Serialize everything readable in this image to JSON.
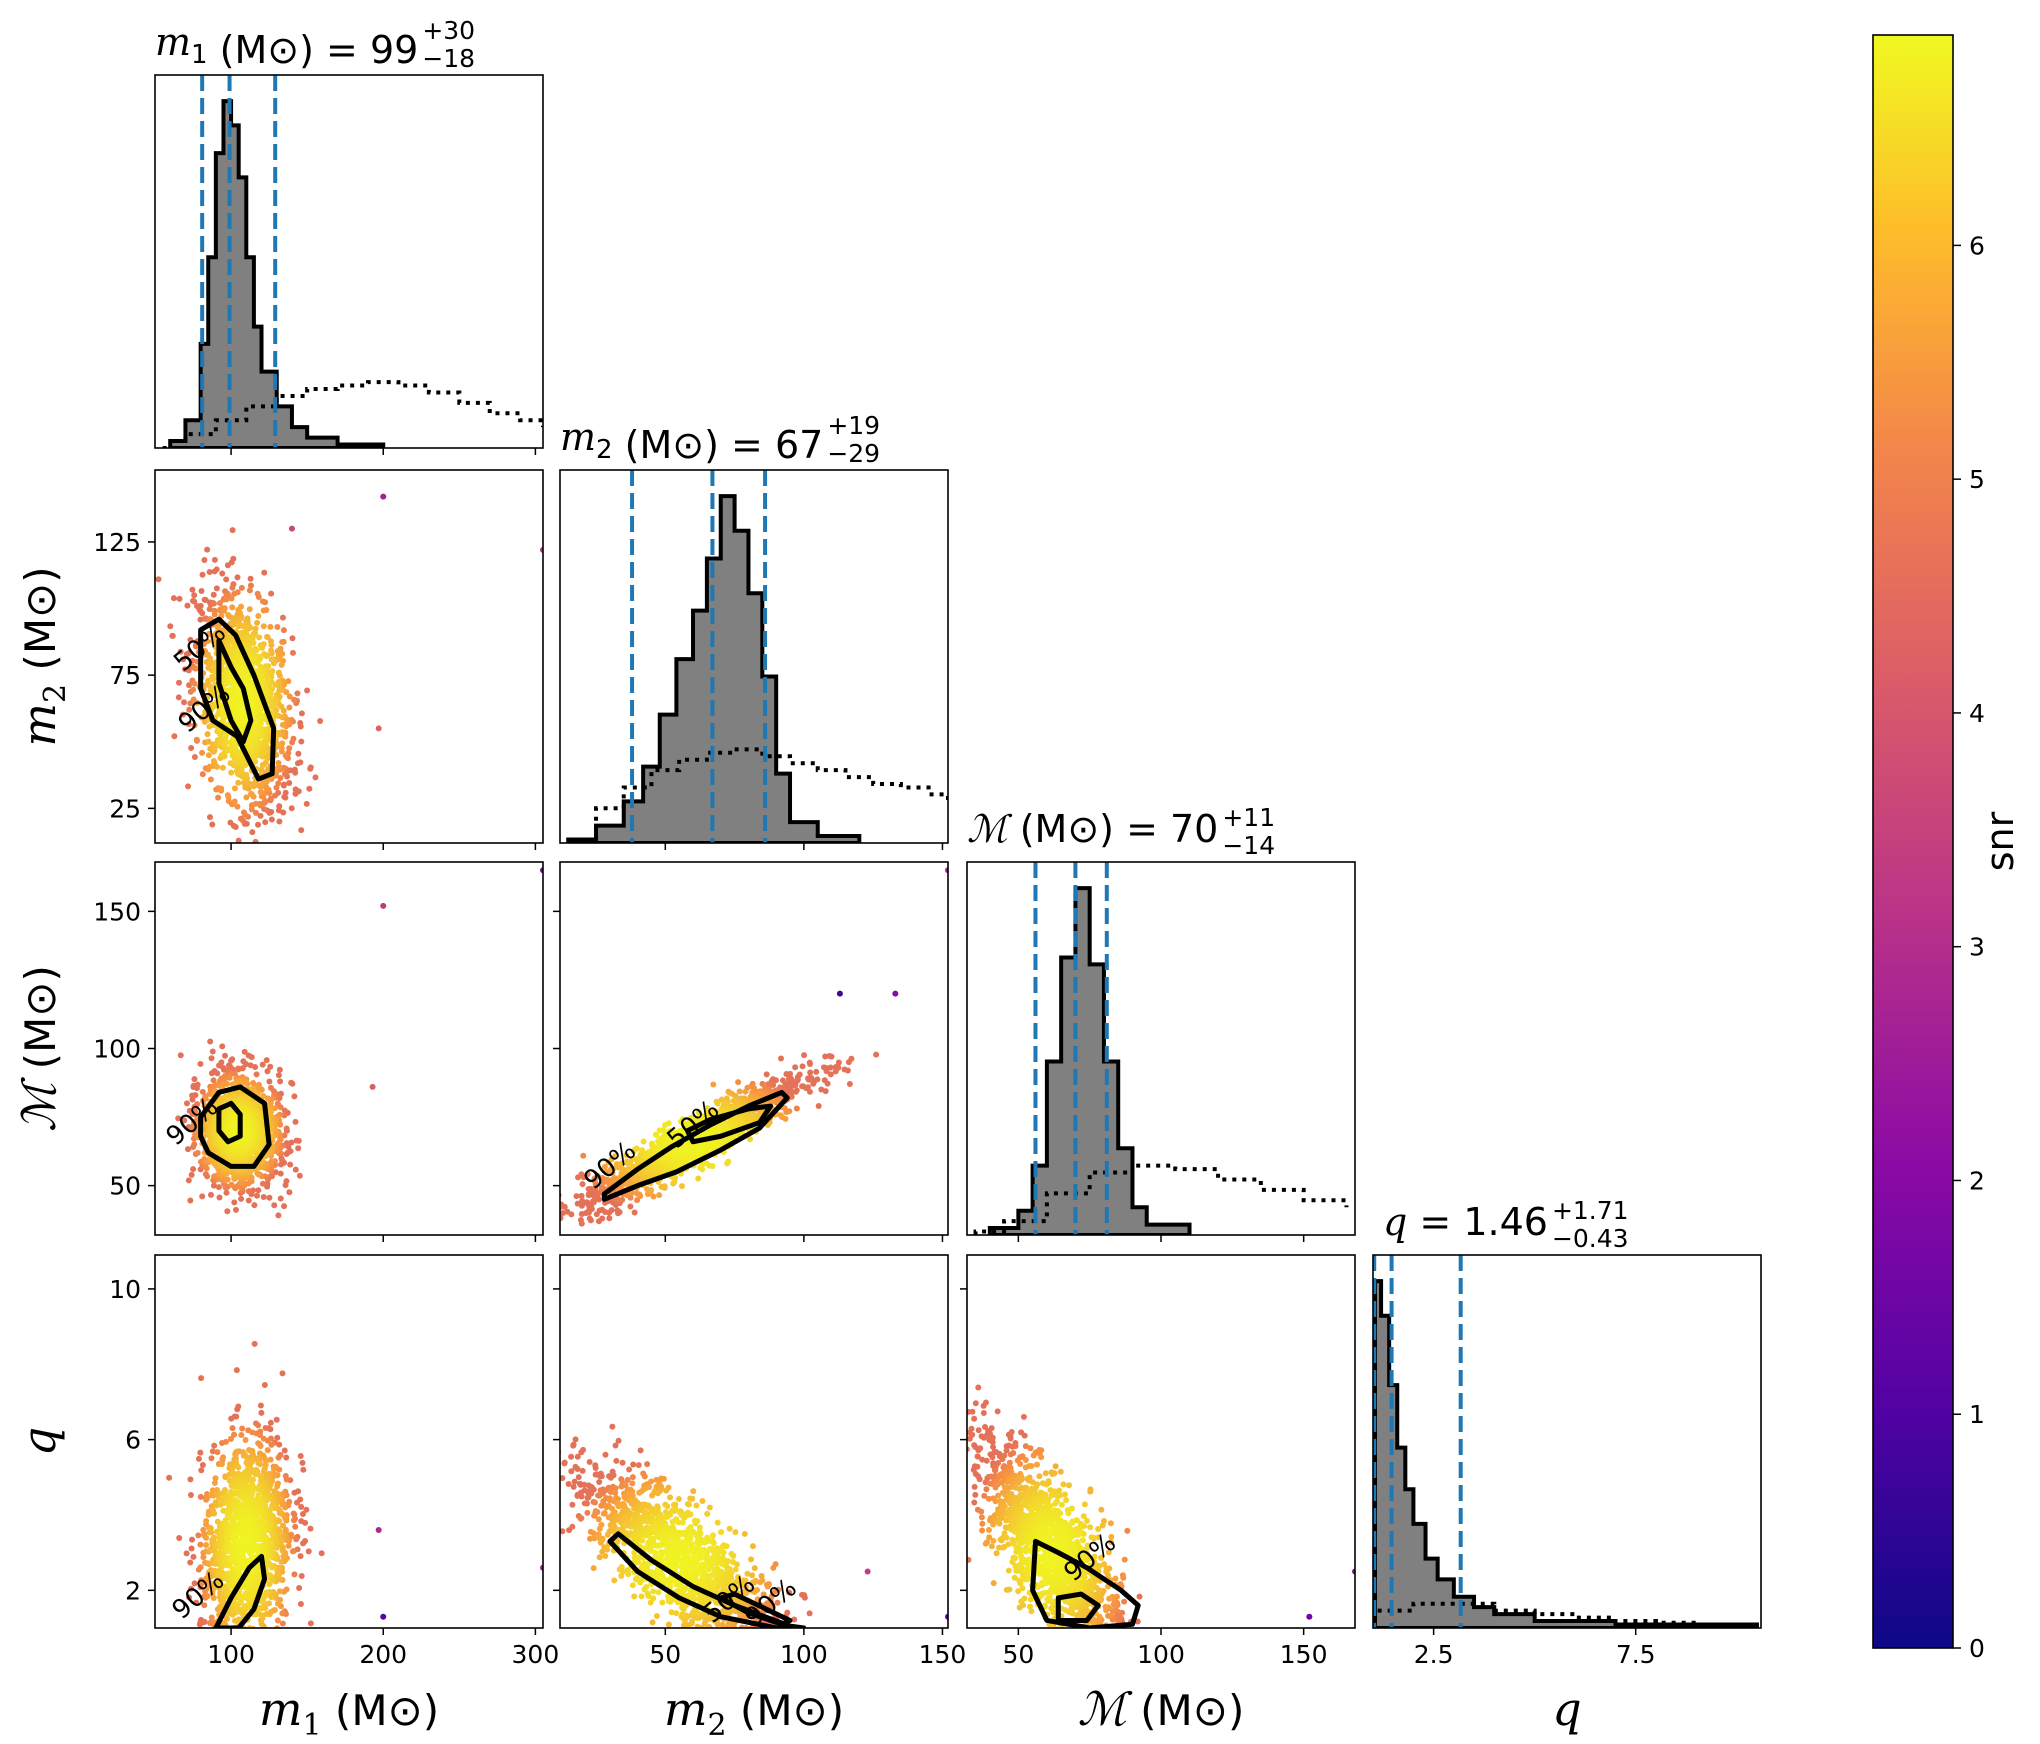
{
  "chart_data": {
    "type": "scatter",
    "figure_kind": "corner",
    "parameters": [
      {
        "key": "m1",
        "symbol": "m",
        "subscript": "1",
        "unit": "(M⊙)",
        "range": [
          50,
          305
        ],
        "ticks": [
          100,
          200,
          300
        ],
        "tick_labels": [
          "100",
          "200",
          "300"
        ],
        "title_value": "99",
        "title_plus": "+30",
        "title_minus": "−18",
        "median": 99,
        "lower": 81,
        "upper": 129
      },
      {
        "key": "m2",
        "symbol": "m",
        "subscript": "2",
        "unit": "(M⊙)",
        "range": [
          12,
          152
        ],
        "ticks": [
          25,
          75,
          125
        ],
        "tick_labels": [
          "25",
          "75",
          "125"
        ],
        "x_ticks": [
          50,
          100,
          150
        ],
        "x_tick_labels": [
          "50",
          "100",
          "150"
        ],
        "title_value": "67",
        "title_plus": "+19",
        "title_minus": "−29",
        "median": 67,
        "lower": 38,
        "upper": 86
      },
      {
        "key": "mc",
        "symbol": "ℳ",
        "subscript": "",
        "unit": "(M⊙)",
        "range": [
          32,
          168
        ],
        "ticks": [
          50,
          100,
          150
        ],
        "tick_labels": [
          "50",
          "100",
          "150"
        ],
        "title_value": "70",
        "title_plus": "+11",
        "title_minus": "−14",
        "median": 70,
        "lower": 56,
        "upper": 81
      },
      {
        "key": "q",
        "symbol": "q",
        "subscript": "",
        "unit": "",
        "range": [
          1.0,
          10.9
        ],
        "ticks": [
          2,
          6,
          10
        ],
        "tick_labels": [
          "2",
          "6",
          "10"
        ],
        "x_range": [
          1.0,
          10.6
        ],
        "x_ticks": [
          2.5,
          7.5
        ],
        "x_tick_labels": [
          "2.5",
          "7.5"
        ],
        "title_value": "1.46",
        "title_plus": "+1.71",
        "title_minus": "−0.43",
        "median": 1.46,
        "lower": 1.03,
        "upper": 3.17
      }
    ],
    "histograms": {
      "m1": {
        "posterior": [
          [
            60,
            0.02
          ],
          [
            70,
            0.08
          ],
          [
            80,
            0.3
          ],
          [
            85,
            0.55
          ],
          [
            90,
            0.85
          ],
          [
            95,
            1.0
          ],
          [
            100,
            0.93
          ],
          [
            105,
            0.78
          ],
          [
            110,
            0.55
          ],
          [
            115,
            0.35
          ],
          [
            120,
            0.22
          ],
          [
            130,
            0.12
          ],
          [
            140,
            0.06
          ],
          [
            150,
            0.03
          ],
          [
            170,
            0.01
          ],
          [
            200,
            0.0
          ]
        ],
        "prior": [
          [
            55,
            0.0
          ],
          [
            70,
            0.04
          ],
          [
            90,
            0.08
          ],
          [
            110,
            0.12
          ],
          [
            130,
            0.15
          ],
          [
            150,
            0.17
          ],
          [
            170,
            0.18
          ],
          [
            190,
            0.19
          ],
          [
            210,
            0.18
          ],
          [
            230,
            0.16
          ],
          [
            250,
            0.13
          ],
          [
            270,
            0.1
          ],
          [
            290,
            0.08
          ],
          [
            305,
            0.06
          ]
        ]
      },
      "m2": {
        "posterior": [
          [
            15,
            0.01
          ],
          [
            25,
            0.05
          ],
          [
            35,
            0.12
          ],
          [
            42,
            0.22
          ],
          [
            48,
            0.37
          ],
          [
            54,
            0.53
          ],
          [
            60,
            0.67
          ],
          [
            65,
            0.82
          ],
          [
            70,
            1.0
          ],
          [
            75,
            0.9
          ],
          [
            80,
            0.72
          ],
          [
            85,
            0.48
          ],
          [
            90,
            0.2
          ],
          [
            95,
            0.06
          ],
          [
            105,
            0.02
          ],
          [
            120,
            0.0
          ]
        ],
        "prior": [
          [
            15,
            0.01
          ],
          [
            25,
            0.1
          ],
          [
            35,
            0.16
          ],
          [
            45,
            0.21
          ],
          [
            55,
            0.24
          ],
          [
            65,
            0.26
          ],
          [
            75,
            0.27
          ],
          [
            85,
            0.25
          ],
          [
            95,
            0.23
          ],
          [
            105,
            0.21
          ],
          [
            115,
            0.19
          ],
          [
            125,
            0.17
          ],
          [
            135,
            0.16
          ],
          [
            145,
            0.14
          ],
          [
            152,
            0.12
          ]
        ]
      },
      "mc": {
        "posterior": [
          [
            40,
            0.02
          ],
          [
            50,
            0.07
          ],
          [
            55,
            0.2
          ],
          [
            60,
            0.5
          ],
          [
            65,
            0.8
          ],
          [
            70,
            1.0
          ],
          [
            75,
            0.78
          ],
          [
            80,
            0.5
          ],
          [
            85,
            0.25
          ],
          [
            90,
            0.08
          ],
          [
            95,
            0.03
          ],
          [
            110,
            0.0
          ]
        ],
        "prior": [
          [
            35,
            0.01
          ],
          [
            45,
            0.04
          ],
          [
            60,
            0.12
          ],
          [
            75,
            0.18
          ],
          [
            90,
            0.2
          ],
          [
            105,
            0.19
          ],
          [
            120,
            0.16
          ],
          [
            135,
            0.13
          ],
          [
            150,
            0.1
          ],
          [
            165,
            0.08
          ]
        ]
      },
      "q": {
        "posterior": [
          [
            1.05,
            1.0
          ],
          [
            1.2,
            0.9
          ],
          [
            1.4,
            0.7
          ],
          [
            1.6,
            0.52
          ],
          [
            1.8,
            0.4
          ],
          [
            2.0,
            0.3
          ],
          [
            2.3,
            0.2
          ],
          [
            2.6,
            0.14
          ],
          [
            3.0,
            0.09
          ],
          [
            3.5,
            0.06
          ],
          [
            4.0,
            0.04
          ],
          [
            5.0,
            0.02
          ],
          [
            7.0,
            0.01
          ],
          [
            10.5,
            0.0
          ]
        ],
        "prior": [
          [
            1.05,
            0.05
          ],
          [
            2.0,
            0.07
          ],
          [
            3.0,
            0.07
          ],
          [
            4.0,
            0.05
          ],
          [
            5.0,
            0.04
          ],
          [
            6.0,
            0.03
          ],
          [
            7.0,
            0.02
          ],
          [
            8.0,
            0.015
          ],
          [
            9.0,
            0.01
          ],
          [
            10.5,
            0.008
          ]
        ]
      }
    },
    "scatter_clouds": [
      {
        "x": "m1",
        "y": "m2",
        "center": [
          108,
          65
        ],
        "sx": 16,
        "sy": 20,
        "rho": -0.35,
        "contour50": [
          [
            92,
            88
          ],
          [
            100,
            78
          ],
          [
            108,
            70
          ],
          [
            113,
            58
          ],
          [
            108,
            50
          ],
          [
            100,
            58
          ],
          [
            92,
            72
          ]
        ],
        "contour90": [
          [
            80,
            92
          ],
          [
            92,
            96
          ],
          [
            103,
            90
          ],
          [
            115,
            75
          ],
          [
            128,
            55
          ],
          [
            127,
            38
          ],
          [
            118,
            36
          ],
          [
            104,
            52
          ],
          [
            88,
            58
          ],
          [
            80,
            70
          ]
        ],
        "labels": [
          {
            "text": "50%",
            "at": [
              83,
              83
            ]
          },
          {
            "text": "90%",
            "at": [
              86,
              60
            ]
          }
        ],
        "outliers": [
          [
            140,
            130
          ],
          [
            197,
            55
          ],
          [
            200,
            142
          ],
          [
            305,
            122
          ]
        ]
      },
      {
        "x": "m2",
        "y": "mc",
        "center": [
          60,
          66
        ],
        "sx": 20,
        "sy": 12,
        "rho": 0.92,
        "contour50": [
          [
            58,
            70
          ],
          [
            66,
            74
          ],
          [
            80,
            78
          ],
          [
            88,
            79
          ],
          [
            84,
            73
          ],
          [
            70,
            68
          ],
          [
            60,
            66
          ]
        ],
        "contour90": [
          [
            28,
            47
          ],
          [
            40,
            56
          ],
          [
            52,
            64
          ],
          [
            66,
            72
          ],
          [
            80,
            79
          ],
          [
            92,
            84
          ],
          [
            94,
            82
          ],
          [
            84,
            71
          ],
          [
            70,
            63
          ],
          [
            54,
            55
          ],
          [
            40,
            50
          ],
          [
            28,
            45
          ]
        ],
        "labels": [
          {
            "text": "50%",
            "at": [
              62,
              70
            ]
          },
          {
            "text": "90%",
            "at": [
              32,
              55
            ]
          }
        ],
        "outliers": [
          [
            113,
            120
          ],
          [
            133,
            120
          ],
          [
            152,
            165
          ]
        ]
      },
      {
        "x": "m1",
        "y": "mc",
        "center": [
          105,
          70
        ],
        "sx": 14,
        "sy": 10,
        "rho": -0.1,
        "contour50": [
          [
            92,
            78
          ],
          [
            100,
            80
          ],
          [
            106,
            76
          ],
          [
            106,
            68
          ],
          [
            98,
            66
          ],
          [
            92,
            70
          ]
        ],
        "contour90": [
          [
            80,
            75
          ],
          [
            92,
            84
          ],
          [
            106,
            86
          ],
          [
            122,
            80
          ],
          [
            125,
            65
          ],
          [
            115,
            57
          ],
          [
            100,
            57
          ],
          [
            85,
            62
          ],
          [
            80,
            68
          ]
        ],
        "labels": [
          {
            "text": "90%",
            "at": [
              78,
              71
            ]
          }
        ],
        "outliers": [
          [
            200,
            152
          ],
          [
            193,
            86
          ],
          [
            305,
            165
          ]
        ]
      },
      {
        "x": "m1",
        "y": "q",
        "center": [
          110,
          3.2
        ],
        "sx": 15,
        "sy": 1.5,
        "rho": 0.25,
        "contour50": [],
        "contour90": [
          [
            90,
            1.0
          ],
          [
            100,
            1.8
          ],
          [
            112,
            2.6
          ],
          [
            120,
            2.9
          ],
          [
            122,
            2.3
          ],
          [
            115,
            1.5
          ],
          [
            105,
            1.0
          ]
        ],
        "labels": [
          {
            "text": "90%",
            "at": [
              82,
              1.7
            ]
          }
        ],
        "outliers": [
          [
            197,
            3.6
          ],
          [
            200,
            1.3
          ],
          [
            305,
            2.6
          ]
        ]
      },
      {
        "x": "m2",
        "y": "q",
        "center": [
          55,
          2.8
        ],
        "sx": 18,
        "sy": 1.2,
        "rho": -0.8,
        "contour50": [
          [
            75,
            1.9
          ],
          [
            85,
            1.55
          ],
          [
            95,
            1.2
          ],
          [
            92,
            1.1
          ],
          [
            80,
            1.4
          ],
          [
            70,
            1.8
          ]
        ],
        "contour90": [
          [
            33,
            3.5
          ],
          [
            45,
            2.8
          ],
          [
            60,
            2.1
          ],
          [
            75,
            1.6
          ],
          [
            95,
            1.05
          ],
          [
            100,
            1.0
          ],
          [
            90,
            1.0
          ],
          [
            70,
            1.3
          ],
          [
            55,
            1.8
          ],
          [
            40,
            2.5
          ],
          [
            30,
            3.3
          ]
        ],
        "labels": [
          {
            "text": "50%",
            "at": [
              75,
              1.6
            ]
          },
          {
            "text": "90%",
            "at": [
              90,
              1.5
            ]
          }
        ],
        "outliers": [
          [
            123,
            2.5
          ],
          [
            152,
            1.3
          ]
        ]
      },
      {
        "x": "mc",
        "y": "q",
        "center": [
          62,
          3.0
        ],
        "sx": 13,
        "sy": 1.4,
        "rho": -0.75,
        "contour50": [
          [
            64,
            1.8
          ],
          [
            72,
            1.9
          ],
          [
            78,
            1.6
          ],
          [
            74,
            1.2
          ],
          [
            64,
            1.2
          ]
        ],
        "contour90": [
          [
            56,
            3.3
          ],
          [
            64,
            3.0
          ],
          [
            74,
            2.6
          ],
          [
            86,
            2.0
          ],
          [
            92,
            1.6
          ],
          [
            90,
            1.1
          ],
          [
            75,
            1.0
          ],
          [
            60,
            1.2
          ],
          [
            55,
            2.0
          ]
        ],
        "labels": [
          {
            "text": "90%",
            "at": [
              77,
              2.7
            ]
          }
        ],
        "outliers": [
          [
            152,
            1.3
          ],
          [
            168,
            2.5
          ]
        ]
      }
    ],
    "colorbar": {
      "label": "snr",
      "range": [
        0,
        6.9
      ],
      "ticks": [
        0,
        1,
        2,
        3,
        4,
        5,
        6
      ],
      "tick_labels": [
        "0",
        "1",
        "2",
        "3",
        "4",
        "5",
        "6"
      ],
      "colormap": "plasma",
      "colors": [
        "#0d0887",
        "#6a00a8",
        "#b12a90",
        "#e16462",
        "#fca636",
        "#f0f921"
      ]
    },
    "colors": {
      "posterior_fill": "#808080",
      "quantile_line": "#1f77b4",
      "contour": "#000000"
    }
  }
}
